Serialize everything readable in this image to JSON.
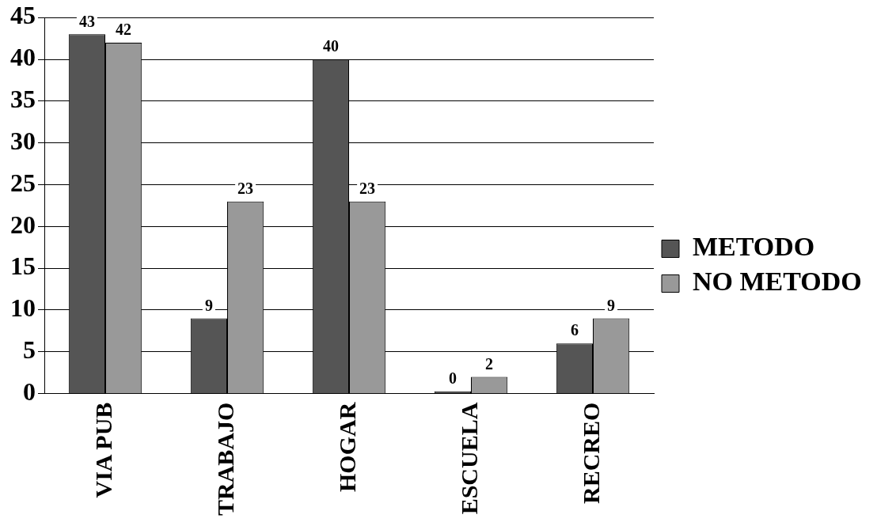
{
  "chart_data": {
    "type": "bar",
    "categories": [
      "VIA PUB",
      "TRABAJO",
      "HOGAR",
      "ESCUELA",
      "RECREO"
    ],
    "series": [
      {
        "name": "METODO",
        "color": "#555555",
        "values": [
          43,
          9,
          40,
          0,
          6
        ]
      },
      {
        "name": "NO METODO",
        "color": "#999999",
        "values": [
          42,
          23,
          23,
          2,
          9
        ]
      }
    ],
    "ylim": [
      0,
      45
    ],
    "yticks": [
      0,
      5,
      10,
      15,
      20,
      25,
      30,
      35,
      40,
      45
    ],
    "grid": "y",
    "legend": "right",
    "data_labels": true
  }
}
